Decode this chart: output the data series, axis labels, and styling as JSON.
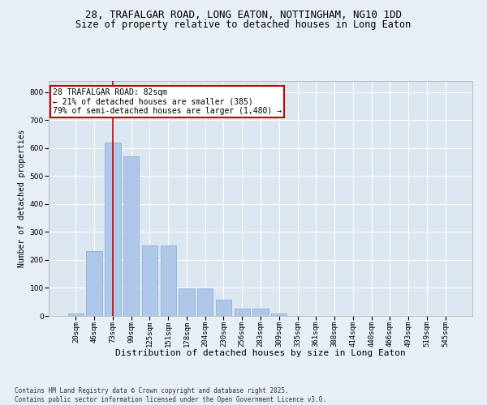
{
  "title_line1": "28, TRAFALGAR ROAD, LONG EATON, NOTTINGHAM, NG10 1DD",
  "title_line2": "Size of property relative to detached houses in Long Eaton",
  "xlabel": "Distribution of detached houses by size in Long Eaton",
  "ylabel": "Number of detached properties",
  "categories": [
    "20sqm",
    "46sqm",
    "73sqm",
    "99sqm",
    "125sqm",
    "151sqm",
    "178sqm",
    "204sqm",
    "230sqm",
    "256sqm",
    "283sqm",
    "309sqm",
    "335sqm",
    "361sqm",
    "388sqm",
    "414sqm",
    "440sqm",
    "466sqm",
    "493sqm",
    "519sqm",
    "545sqm"
  ],
  "values": [
    8,
    232,
    620,
    570,
    252,
    252,
    98,
    98,
    58,
    25,
    25,
    8,
    0,
    0,
    0,
    0,
    0,
    0,
    0,
    0,
    0
  ],
  "bar_color": "#aec6e8",
  "bar_edge_color": "#7aadd4",
  "vline_x": 2,
  "vline_color": "#cc0000",
  "annotation_text": "28 TRAFALGAR ROAD: 82sqm\n← 21% of detached houses are smaller (385)\n79% of semi-detached houses are larger (1,480) →",
  "annotation_box_color": "#ffffff",
  "annotation_edge_color": "#cc0000",
  "ylim": [
    0,
    840
  ],
  "yticks": [
    0,
    100,
    200,
    300,
    400,
    500,
    600,
    700,
    800
  ],
  "bg_color": "#e8eef5",
  "plot_bg_color": "#dce6f0",
  "grid_color": "#ffffff",
  "footnote": "Contains HM Land Registry data © Crown copyright and database right 2025.\nContains public sector information licensed under the Open Government Licence v3.0.",
  "title_fontsize": 9,
  "subtitle_fontsize": 8.5,
  "tick_fontsize": 6.5,
  "xlabel_fontsize": 8,
  "ylabel_fontsize": 7,
  "annot_fontsize": 7,
  "footnote_fontsize": 5.5
}
